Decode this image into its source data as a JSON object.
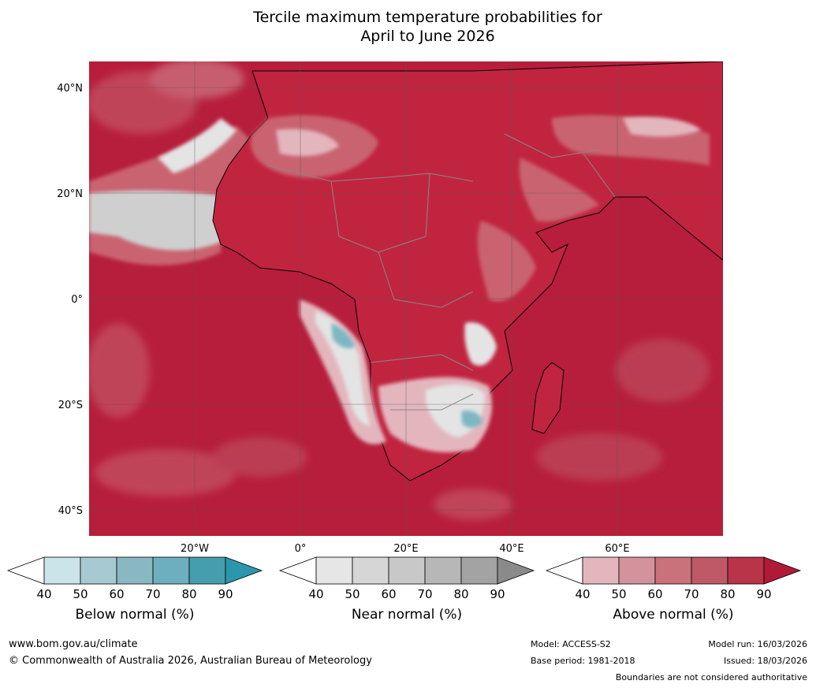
{
  "title_line1": "Tercile maximum temperature probabilities for",
  "title_line2": "April to June 2026",
  "map": {
    "lat_labels": [
      "40°N",
      "20°N",
      "0°",
      "20°S",
      "40°S"
    ],
    "lon_labels": [
      "20°W",
      "0°",
      "20°E",
      "40°E",
      "60°E"
    ],
    "colors": {
      "ocean_above": "#b71e3b",
      "land_above": "#c1243f",
      "above_light": "#e3b6bd",
      "above_mid": "#c9636f",
      "near_light": "#e4e4e4",
      "near_mid": "#cfcfcf",
      "below": "#7fb6c4",
      "gridline": "#555555",
      "border": "#888888"
    }
  },
  "colorbars": [
    {
      "title": "Below normal (%)",
      "ticks": [
        "40",
        "50",
        "60",
        "70",
        "80",
        "90"
      ],
      "colors": [
        "#ffffff",
        "#cbe4ea",
        "#a7c9d1",
        "#89b8c3",
        "#6eafbf",
        "#459ead",
        "#2c96ac"
      ]
    },
    {
      "title": "Near normal (%)",
      "ticks": [
        "40",
        "50",
        "60",
        "70",
        "80",
        "90"
      ],
      "colors": [
        "#ffffff",
        "#e6e6e6",
        "#d6d6d6",
        "#c8c8c8",
        "#b7b7b7",
        "#a3a3a3",
        "#8a8a8a"
      ]
    },
    {
      "title": "Above normal (%)",
      "ticks": [
        "40",
        "50",
        "60",
        "70",
        "80",
        "90"
      ],
      "colors": [
        "#ffffff",
        "#e3b6bd",
        "#d3939c",
        "#c9727c",
        "#bf5867",
        "#b93349",
        "#b11a37"
      ]
    }
  ],
  "footer": {
    "website": "www.bom.gov.au/climate",
    "copyright": "© Commonwealth of Australia 2026, Australian Bureau of Meteorology",
    "model": "Model: ACCESS-S2",
    "base_period": "Base period: 1981-2018",
    "model_run": "Model run: 16/03/2026",
    "issued": "Issued: 18/03/2026",
    "disclaimer": "Boundaries are not considered authoritative"
  }
}
